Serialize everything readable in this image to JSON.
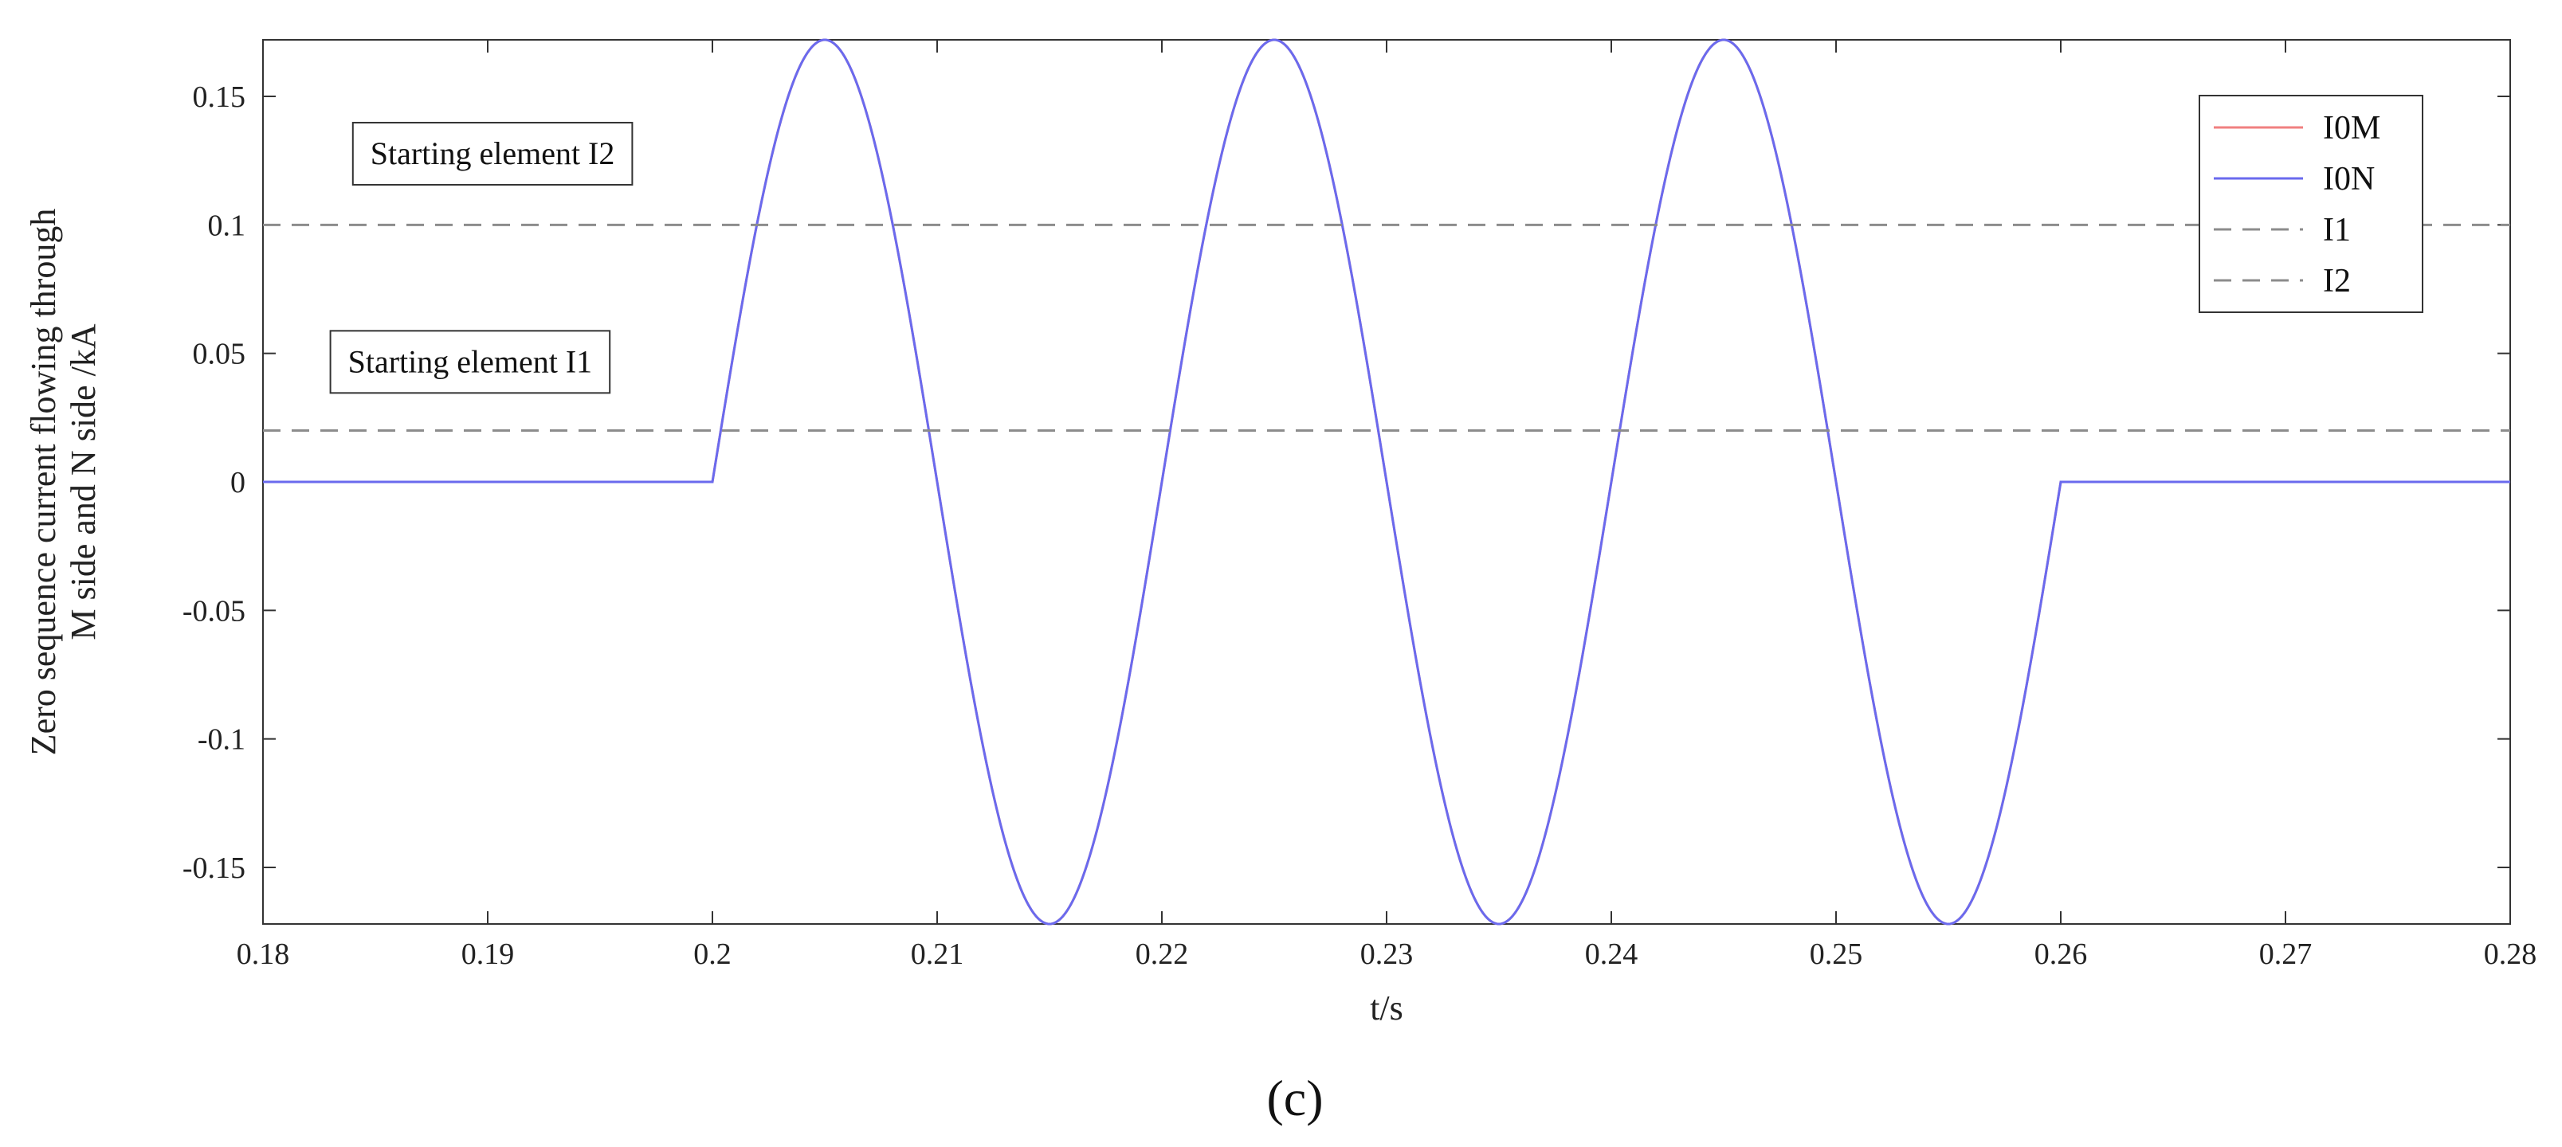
{
  "chart_data": {
    "type": "line",
    "title": "",
    "caption": "(c)",
    "xlabel": "t/s",
    "ylabel_lines": [
      "Zero sequence current flowing through",
      "M side and N side /kA"
    ],
    "xlim": [
      0.18,
      0.28
    ],
    "ylim": [
      -0.172,
      0.172
    ],
    "xticks": [
      0.18,
      0.19,
      0.2,
      0.21,
      0.22,
      0.23,
      0.24,
      0.25,
      0.26,
      0.27,
      0.28
    ],
    "xtick_labels": [
      "0.18",
      "0.19",
      "0.2",
      "0.21",
      "0.22",
      "0.23",
      "0.24",
      "0.25",
      "0.26",
      "0.27",
      "0.28"
    ],
    "yticks": [
      0.15,
      0.1,
      0.05,
      0,
      -0.05,
      -0.1,
      -0.15
    ],
    "ytick_labels": [
      "0.15",
      "0.1",
      "0.05",
      "0",
      "-0.05",
      "-0.1",
      "-0.15"
    ],
    "grid": false,
    "legend_position": "top-right",
    "series": [
      {
        "name": "I0M",
        "color": "#f08080",
        "style": "solid",
        "description_values": {
          "x": [
            0.18,
            0.2,
            0.205,
            0.215,
            0.225,
            0.235,
            0.245,
            0.255,
            0.26,
            0.28
          ],
          "y": [
            0,
            0,
            0.172,
            -0.172,
            0.172,
            -0.172,
            0.172,
            -0.172,
            0,
            0
          ]
        },
        "waveform": {
          "start": 0.2,
          "end": 0.26,
          "amplitude": 0.172,
          "frequency_hz": 50
        }
      },
      {
        "name": "I0N",
        "color": "#6a6aee",
        "style": "solid",
        "description_values": {
          "x": [
            0.18,
            0.2,
            0.205,
            0.215,
            0.225,
            0.235,
            0.245,
            0.255,
            0.26,
            0.28
          ],
          "y": [
            0,
            0,
            0.172,
            -0.172,
            0.172,
            -0.172,
            0.172,
            -0.172,
            0,
            0
          ]
        },
        "waveform": {
          "start": 0.2,
          "end": 0.26,
          "amplitude": 0.172,
          "frequency_hz": 50
        }
      },
      {
        "name": "I1",
        "color": "#8c8c8c",
        "style": "dashed",
        "constant": 0.1
      },
      {
        "name": "I2",
        "color": "#8c8c8c",
        "style": "dashed",
        "constant": 0.02
      }
    ],
    "annotations": [
      {
        "text": "Starting element  I2",
        "x": 0.184,
        "y": 0.128
      },
      {
        "text": "Starting element  I1",
        "x": 0.183,
        "y": 0.047
      }
    ]
  }
}
